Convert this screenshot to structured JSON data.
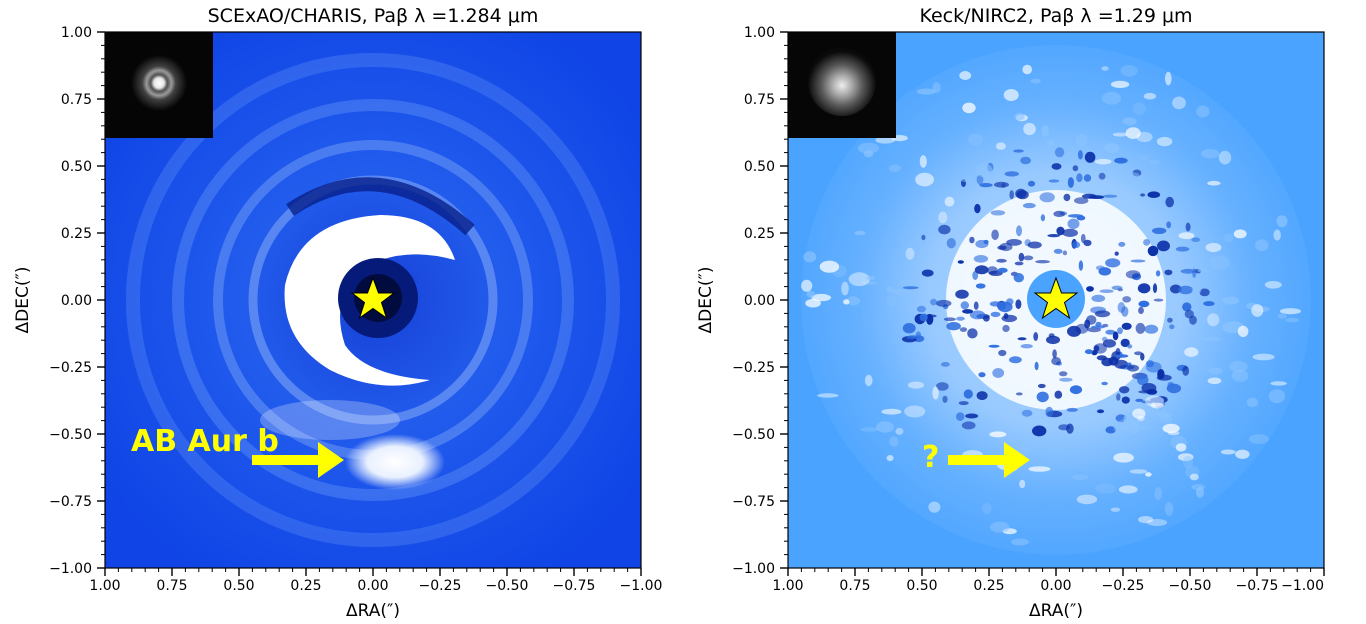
{
  "panels": [
    {
      "title": "SCExAO/CHARIS, Paβ λ =1.284 μm",
      "xlabel": "ΔRA(″)",
      "ylabel": "ΔDEC(″)",
      "annotation": "AB Aur b",
      "background_color": "#0f45e6",
      "star_color": "#ffff00"
    },
    {
      "title": "Keck/NIRC2, Paβ λ =1.29 μm",
      "xlabel": "ΔRA(″)",
      "ylabel": "ΔDEC(″)",
      "annotation": "?",
      "background_color": "#4aa3ff",
      "star_color": "#ffff00"
    }
  ],
  "x_ticks": [
    "1.00",
    "0.75",
    "0.50",
    "0.25",
    "0.00",
    "−0.25",
    "−0.50",
    "−0.75",
    "−1.00"
  ],
  "y_ticks": [
    "1.00",
    "0.75",
    "0.50",
    "0.25",
    "0.00",
    "−0.25",
    "−0.50",
    "−0.75",
    "−1.00"
  ],
  "x_range": [
    1.0,
    -1.0
  ],
  "y_range": [
    -1.0,
    1.0
  ],
  "arrow_color": "#ffff00"
}
